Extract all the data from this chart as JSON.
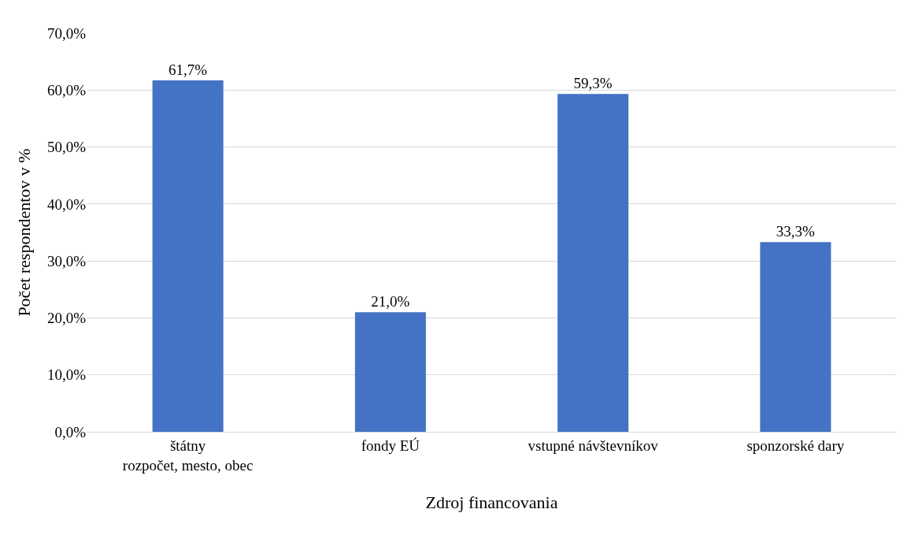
{
  "chart_data": {
    "type": "bar",
    "xlabel": "Zdroj financovania",
    "ylabel": "Počet respondentov v %",
    "categories": [
      "štátny\nrozpočet, mesto, obec",
      "fondy EÚ",
      "vstupné návštevníkov",
      "sponzorské dary"
    ],
    "values": [
      61.7,
      21.0,
      59.3,
      33.3
    ],
    "value_labels": [
      "61,7%",
      "21,0%",
      "59,3%",
      "33,3%"
    ],
    "color": "#4472c4",
    "ylim": [
      0,
      70
    ],
    "yticks": [
      {
        "value": 0,
        "label": "0,0%"
      },
      {
        "value": 10,
        "label": "10,0%"
      },
      {
        "value": 20,
        "label": "20,0%"
      },
      {
        "value": 30,
        "label": "30,0%"
      },
      {
        "value": 40,
        "label": "40,0%"
      },
      {
        "value": 50,
        "label": "50,0%"
      },
      {
        "value": 60,
        "label": "60,0%"
      },
      {
        "value": 70,
        "label": "70,0%"
      }
    ],
    "grid": "y"
  }
}
